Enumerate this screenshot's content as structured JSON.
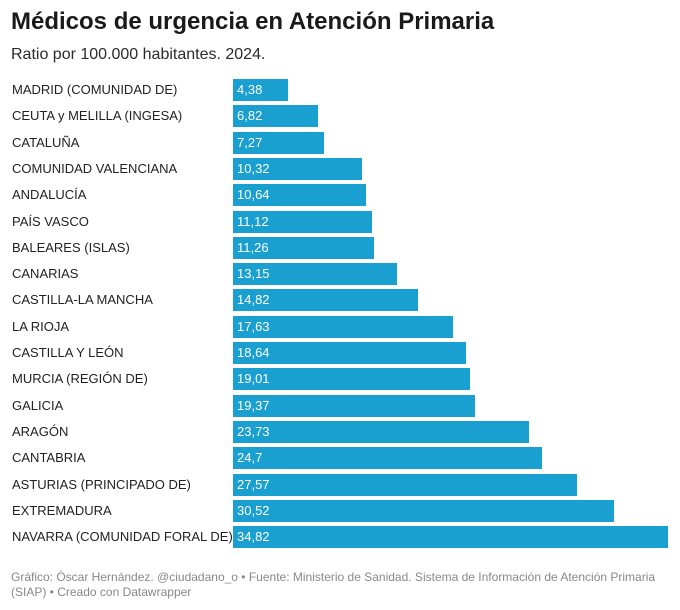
{
  "chart_data": {
    "type": "bar",
    "orientation": "horizontal",
    "title": "Médicos de urgencia en Atención Primaria",
    "subtitle": "Ratio por 100.000 habitantes. 2024.",
    "categories": [
      "MADRID (COMUNIDAD DE)",
      "CEUTA y MELILLA (INGESA)",
      "CATALUÑA",
      "COMUNIDAD VALENCIANA",
      "ANDALUCÍA",
      "PAÍS VASCO",
      "BALEARES (ISLAS)",
      "CANARIAS",
      "CASTILLA-LA MANCHA",
      "LA RIOJA",
      "CASTILLA Y LEÓN",
      "MURCIA (REGIÓN DE)",
      "GALICIA",
      "ARAGÓN",
      "CANTABRIA",
      "ASTURIAS (PRINCIPADO DE)",
      "EXTREMADURA",
      "NAVARRA (COMUNIDAD FORAL DE)"
    ],
    "values": [
      4.38,
      6.82,
      7.27,
      10.32,
      10.64,
      11.12,
      11.26,
      13.15,
      14.82,
      17.63,
      18.64,
      19.01,
      19.37,
      23.73,
      24.7,
      27.57,
      30.52,
      34.82
    ],
    "value_labels": [
      "4,38",
      "6,82",
      "7,27",
      "10,32",
      "10,64",
      "11,12",
      "11,26",
      "13,15",
      "14,82",
      "17,63",
      "18,64",
      "19,01",
      "19,37",
      "23,73",
      "24,7",
      "27,57",
      "30,52",
      "34,82"
    ],
    "bar_color": "#199fd0",
    "xlim": [
      0,
      34.82
    ],
    "grid": false
  },
  "footer": "Gráfico: Óscar Hernández. @ciudadano_o • Fuente: Ministerio de Sanidad. Sistema de Información de Atención Primaria (SIAP) • Creado con Datawrapper"
}
